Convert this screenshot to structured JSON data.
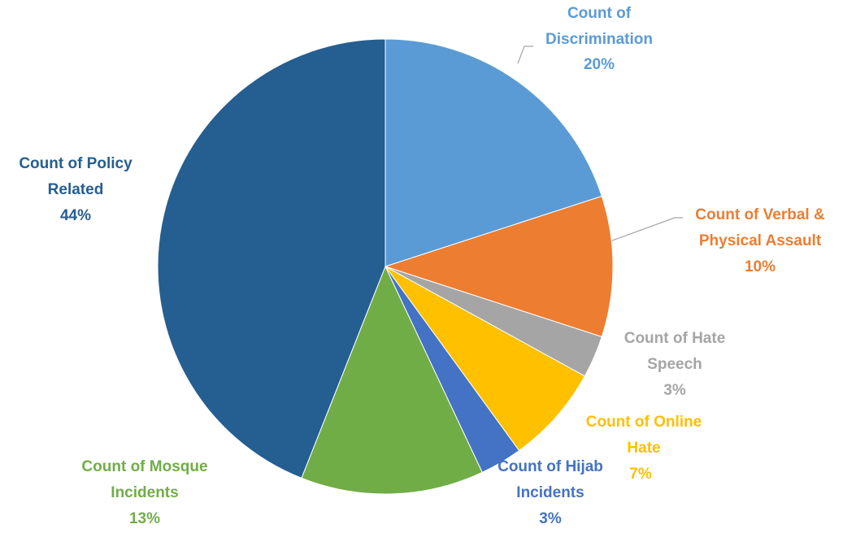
{
  "chart_data": {
    "type": "pie",
    "categories": [
      "Count of Discrimination",
      "Count of Verbal & Physical Assault",
      "Count of Hate Speech",
      "Count of Online Hate",
      "Count of Hijab Incidents",
      "Count of Mosque Incidents",
      "Count of Policy Related"
    ],
    "values": [
      20,
      10,
      3,
      7,
      3,
      13,
      44
    ],
    "value_labels": [
      "20%",
      "10%",
      "3%",
      "7%",
      "3%",
      "13%",
      "44%"
    ],
    "colors": [
      "#5b9bd5",
      "#ed7d31",
      "#a5a5a5",
      "#ffc000",
      "#4472c4",
      "#70ad47",
      "#255e91"
    ]
  }
}
